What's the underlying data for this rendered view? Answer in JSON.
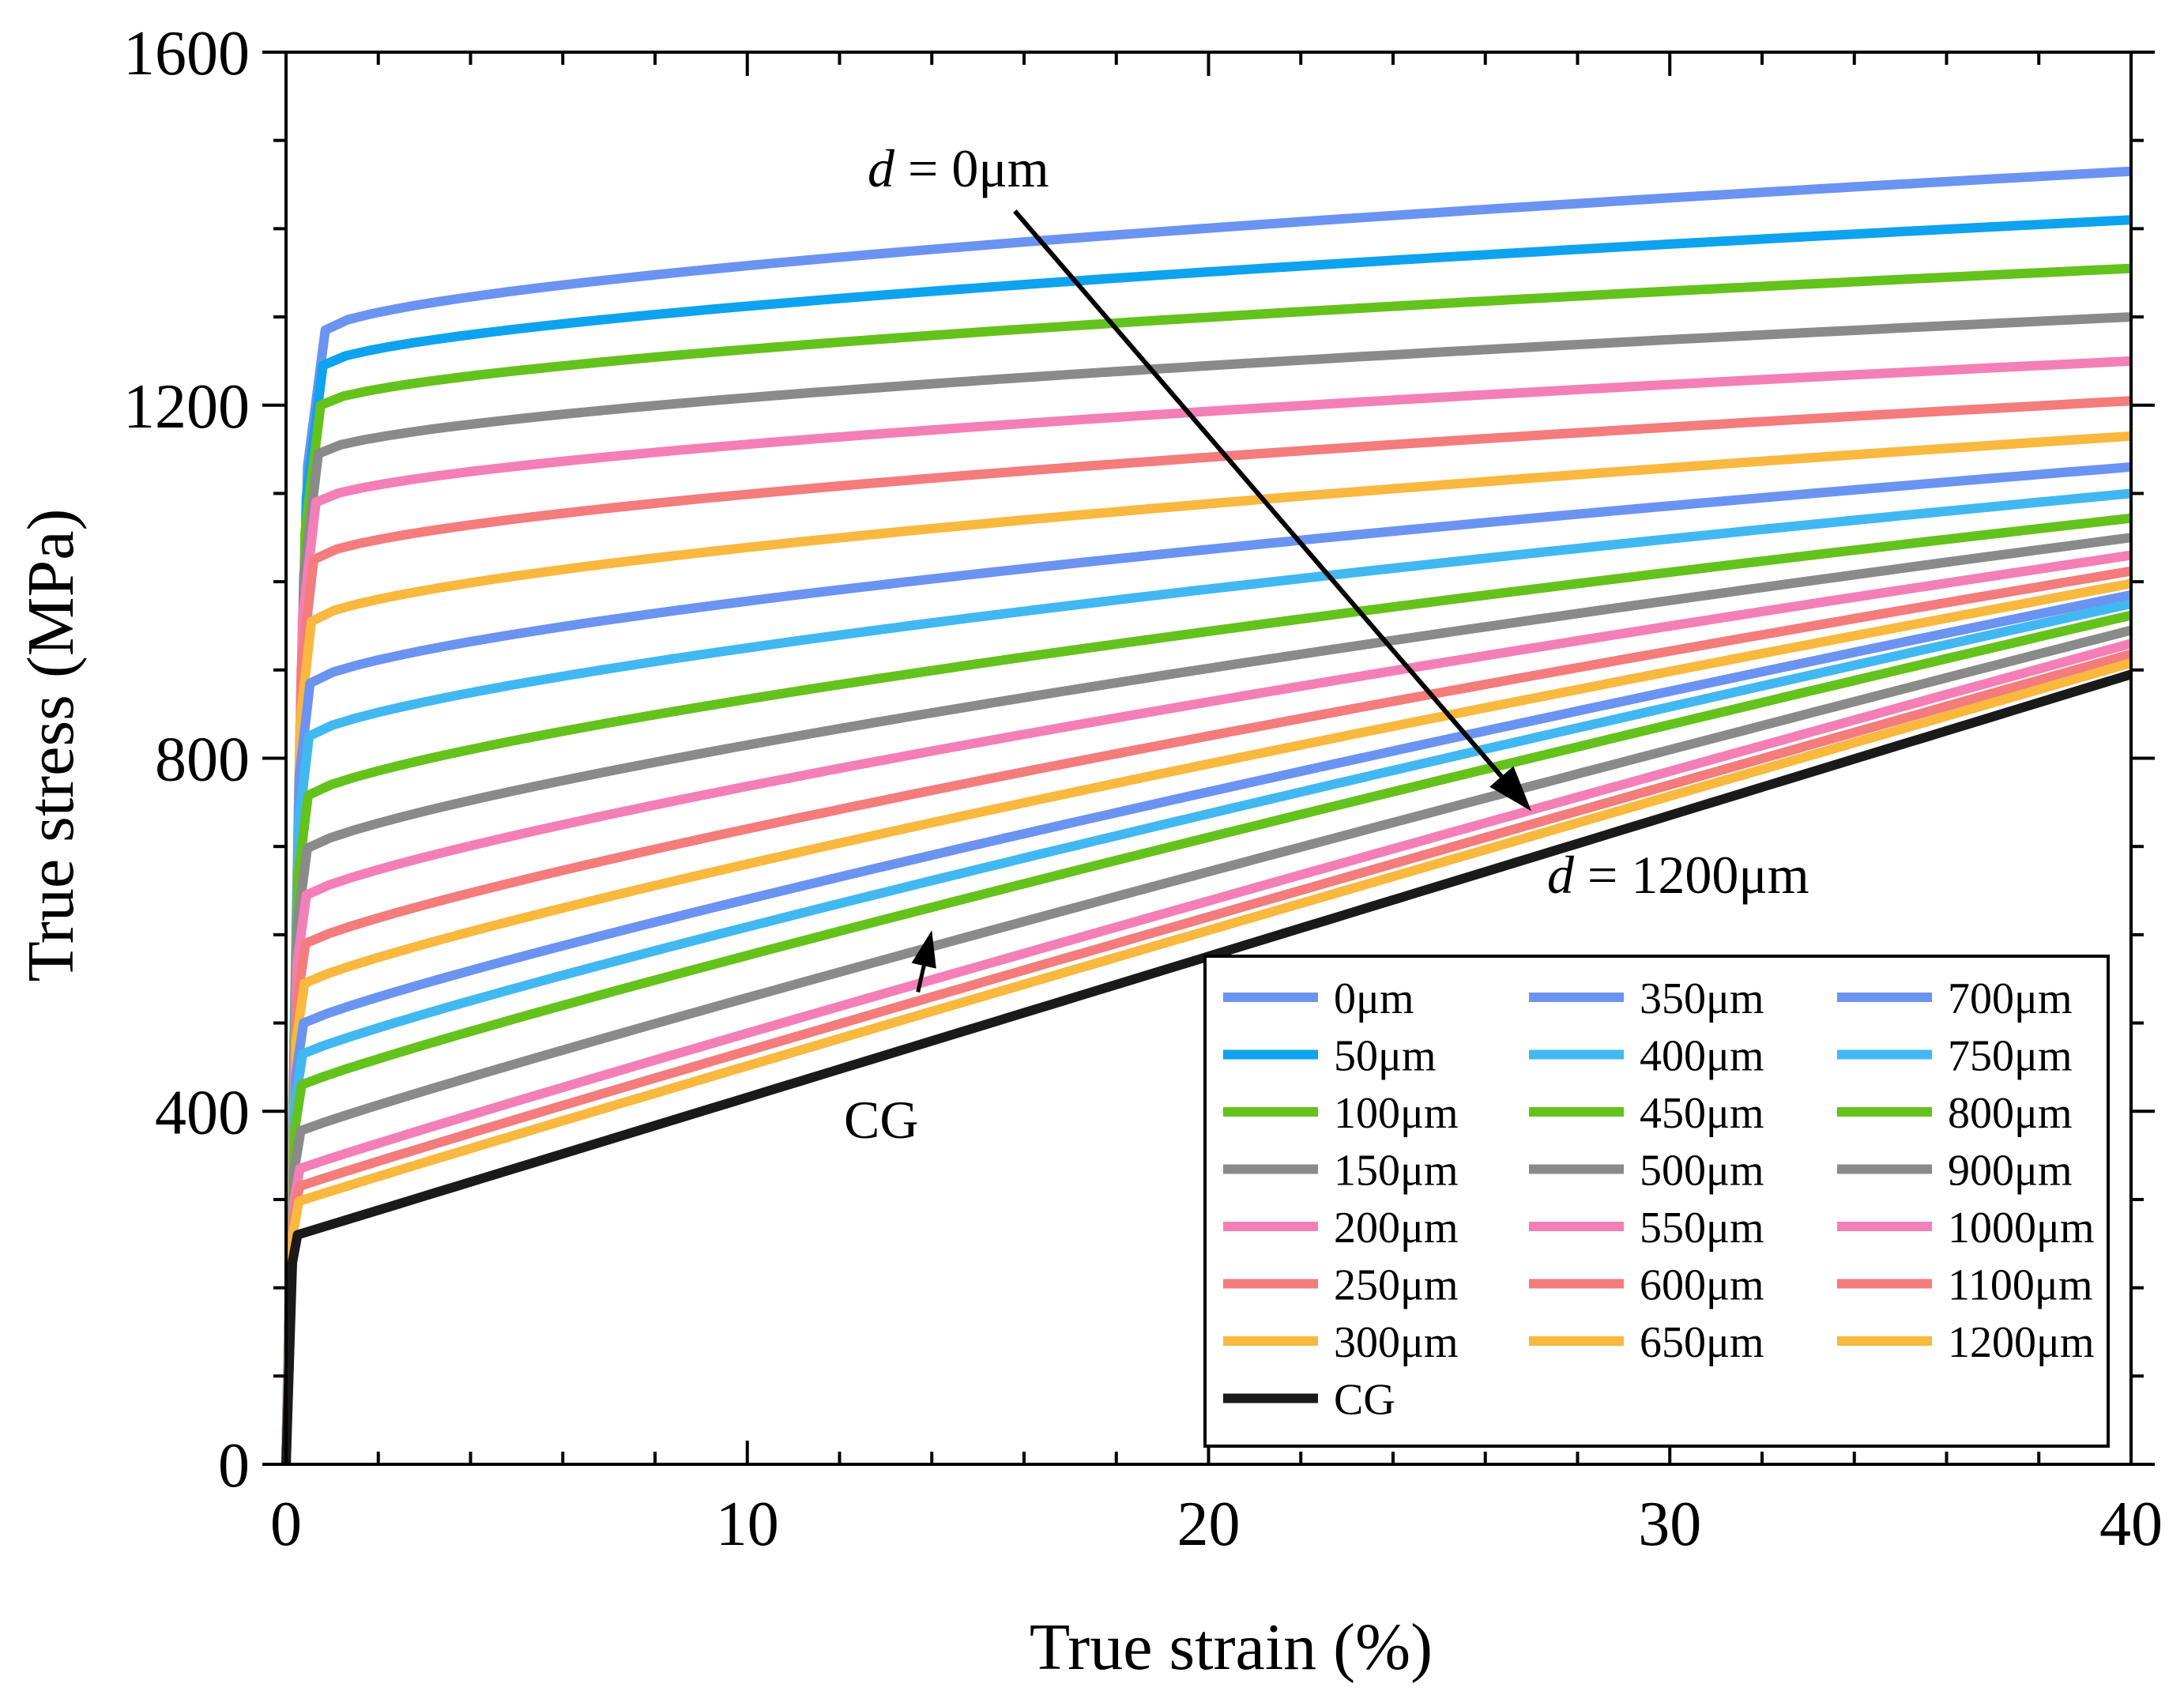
{
  "chart_data": {
    "type": "line",
    "title": "",
    "xlabel": "True strain  (%)",
    "ylabel": "True stress  (MPa)",
    "xlim": [
      0,
      40
    ],
    "ylim": [
      0,
      1600
    ],
    "xticks": [
      0,
      10,
      20,
      30,
      40
    ],
    "yticks": [
      0,
      400,
      800,
      1200,
      1600
    ],
    "xtick_labels": [
      "0",
      "10",
      "20",
      "30",
      "40"
    ],
    "ytick_labels": [
      "0",
      "400",
      "800",
      "1200",
      "1600"
    ],
    "grid": false,
    "legend_position": "bottom-right",
    "colors": {
      "blue": "#6b93f2",
      "azure": "#0da3ee",
      "green": "#64c21c",
      "gray": "#8a8a8a",
      "pink": "#f47fb7",
      "salmon": "#f47c7c",
      "orange": "#f9b83e",
      "black": "#1a1a1a"
    },
    "series": [
      {
        "name": "0μm",
        "color": "#6b93f2",
        "yield_strain": 0.85,
        "yield_stress": 1285,
        "final_stress": 1465
      },
      {
        "name": "50μm",
        "color": "#0da3ee",
        "yield_strain": 0.8,
        "yield_stress": 1245,
        "final_stress": 1410
      },
      {
        "name": "100μm",
        "color": "#64c21c",
        "yield_strain": 0.75,
        "yield_stress": 1200,
        "final_stress": 1355
      },
      {
        "name": "150μm",
        "color": "#8a8a8a",
        "yield_strain": 0.7,
        "yield_stress": 1145,
        "final_stress": 1300
      },
      {
        "name": "200μm",
        "color": "#f47fb7",
        "yield_strain": 0.65,
        "yield_stress": 1090,
        "final_stress": 1250
      },
      {
        "name": "250μm",
        "color": "#f47c7c",
        "yield_strain": 0.6,
        "yield_stress": 1025,
        "final_stress": 1205
      },
      {
        "name": "300μm",
        "color": "#f9b83e",
        "yield_strain": 0.55,
        "yield_stress": 955,
        "final_stress": 1165
      },
      {
        "name": "350μm",
        "color": "#6b93f2",
        "yield_strain": 0.52,
        "yield_stress": 885,
        "final_stress": 1130
      },
      {
        "name": "400μm",
        "color": "#41b8f2",
        "yield_strain": 0.5,
        "yield_stress": 825,
        "final_stress": 1100
      },
      {
        "name": "450μm",
        "color": "#64c21c",
        "yield_strain": 0.48,
        "yield_stress": 758,
        "final_stress": 1072
      },
      {
        "name": "500μm",
        "color": "#8a8a8a",
        "yield_strain": 0.46,
        "yield_stress": 698,
        "final_stress": 1050
      },
      {
        "name": "550μm",
        "color": "#f47fb7",
        "yield_strain": 0.44,
        "yield_stress": 645,
        "final_stress": 1030
      },
      {
        "name": "600μm",
        "color": "#f47c7c",
        "yield_strain": 0.42,
        "yield_stress": 590,
        "final_stress": 1012
      },
      {
        "name": "650μm",
        "color": "#f9b83e",
        "yield_strain": 0.4,
        "yield_stress": 545,
        "final_stress": 998
      },
      {
        "name": "700μm",
        "color": "#6b93f2",
        "yield_strain": 0.38,
        "yield_stress": 500,
        "final_stress": 985
      },
      {
        "name": "750μm",
        "color": "#41b8f2",
        "yield_strain": 0.36,
        "yield_stress": 465,
        "final_stress": 975
      },
      {
        "name": "800μm",
        "color": "#64c21c",
        "yield_strain": 0.34,
        "yield_stress": 430,
        "final_stress": 962
      },
      {
        "name": "900μm",
        "color": "#8a8a8a",
        "yield_strain": 0.32,
        "yield_stress": 378,
        "final_stress": 945
      },
      {
        "name": "1000μm",
        "color": "#f47fb7",
        "yield_strain": 0.3,
        "yield_stress": 335,
        "final_stress": 930
      },
      {
        "name": "1100μm",
        "color": "#f47c7c",
        "yield_strain": 0.29,
        "yield_stress": 315,
        "final_stress": 918
      },
      {
        "name": "1200μm",
        "color": "#f9b83e",
        "yield_strain": 0.28,
        "yield_stress": 298,
        "final_stress": 908
      },
      {
        "name": "CG",
        "color": "#1a1a1a",
        "yield_strain": 0.25,
        "yield_stress": 260,
        "final_stress": 895
      }
    ],
    "annotations": {
      "top_prefix": "d",
      "top_suffix": " = 0μm",
      "bottom_prefix": "d",
      "bottom_suffix": " = 1200μm",
      "cg_label": "CG",
      "arrow_start": [
        15.8,
        1420
      ],
      "arrow_end": [
        27.0,
        740
      ],
      "cg_arrow_start": [
        13.7,
        535
      ],
      "cg_arrow_end": [
        14.0,
        605
      ]
    }
  }
}
